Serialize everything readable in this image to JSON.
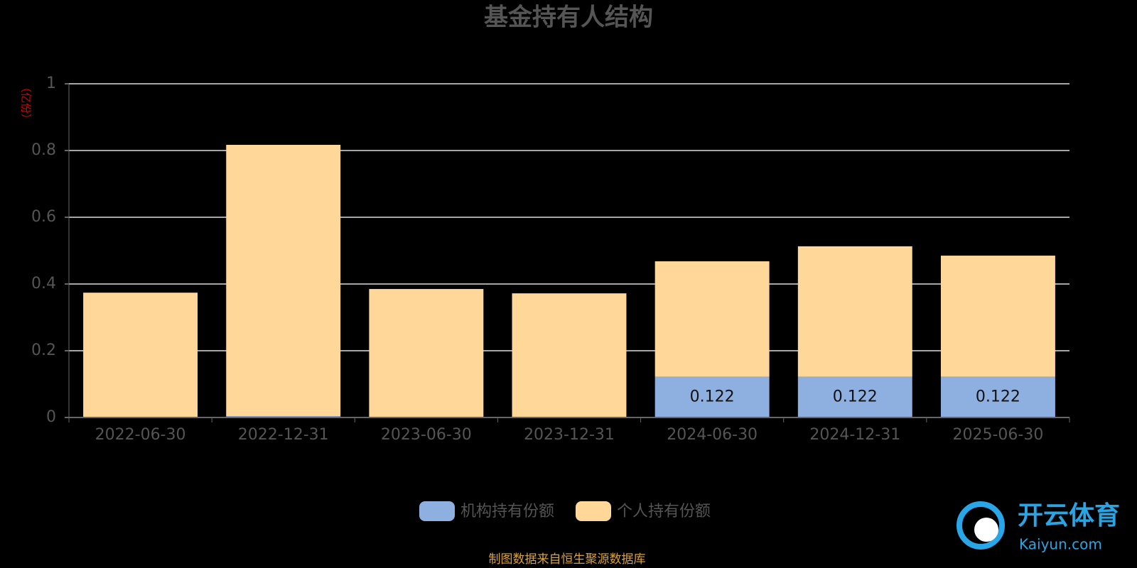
{
  "chart_data": {
    "type": "stacked-bar",
    "title": "基金持有人结构",
    "y_label": "（亿份）",
    "categories": [
      "2022-06-30",
      "2022-12-31",
      "2023-06-30",
      "2023-12-31",
      "2024-06-30",
      "2024-12-31",
      "2025-06-30"
    ],
    "series": [
      {
        "name": "机构持有份额",
        "color": "#8eb0e0",
        "values": [
          0,
          0.004,
          0,
          0,
          0.122,
          0.122,
          0.122
        ],
        "value_labels": [
          null,
          null,
          null,
          null,
          "0.122",
          "0.122",
          "0.122"
        ]
      },
      {
        "name": "个人持有份额",
        "color": "#ffd899",
        "values": [
          0.374,
          0.813,
          0.385,
          0.372,
          0.346,
          0.391,
          0.363
        ]
      }
    ],
    "ylim": [
      0,
      1
    ],
    "yticks": [
      0,
      0.2,
      0.4,
      0.6,
      0.8,
      1
    ],
    "grid": true,
    "source": "制图数据来自恒生聚源数据库",
    "watermark": "开云体育",
    "watermark_sub": "Kaiyun.com"
  }
}
